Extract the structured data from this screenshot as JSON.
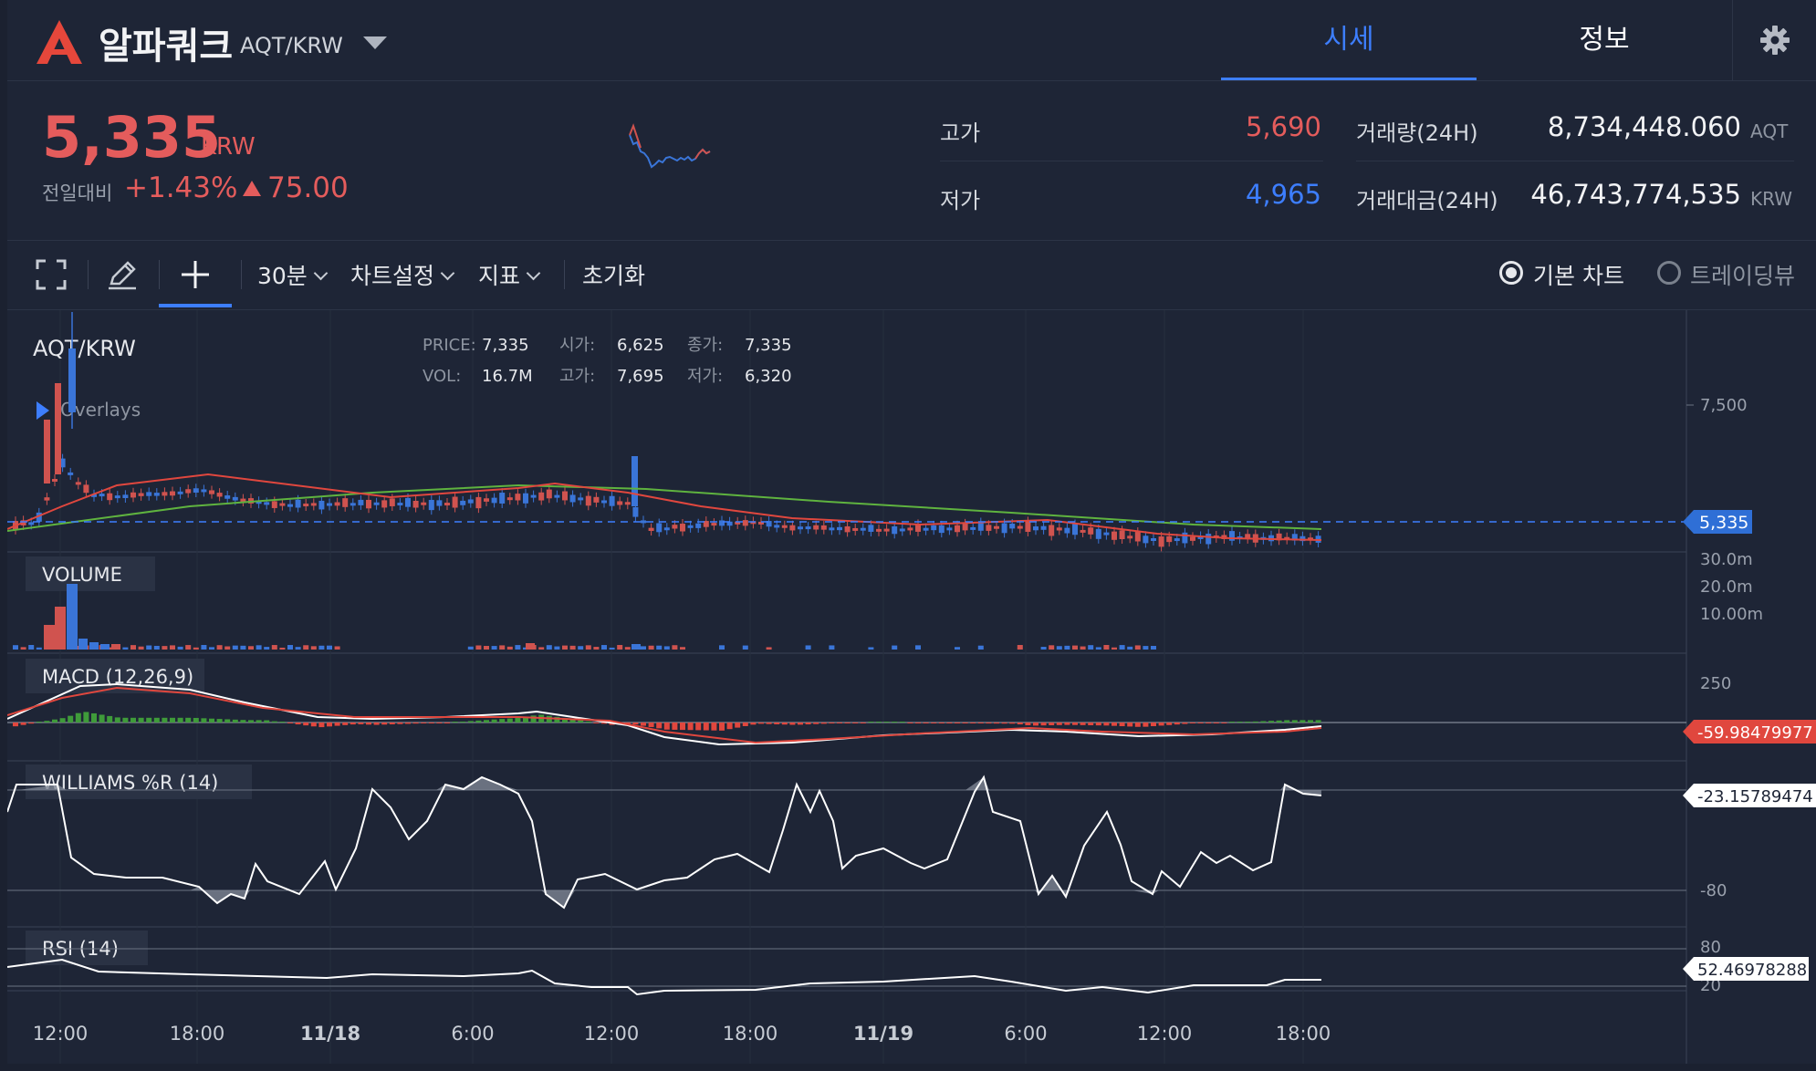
{
  "header": {
    "coin_name": "알파쿼크",
    "coin_pair": "AQT/KRW",
    "tabs": [
      {
        "label": "시세",
        "active": true
      },
      {
        "label": "정보",
        "active": false
      }
    ]
  },
  "ticker": {
    "price": "5,335",
    "unit": "KRW",
    "prev_label": "전일대비",
    "change_pct": "+1.43%",
    "change_amt": "75.00",
    "high_label": "고가",
    "high": "5,690",
    "low_label": "저가",
    "low": "4,965",
    "volume_label": "거래량(24H)",
    "volume": "8,734,448.060",
    "volume_unit": "AQT",
    "turnover_label": "거래대금(24H)",
    "turnover": "46,743,774,535",
    "turnover_unit": "KRW"
  },
  "toolbar": {
    "interval": "30분",
    "chart_settings": "차트설정",
    "indicators": "지표",
    "reset": "초기화",
    "view_basic": "기본 차트",
    "view_trading": "트레이딩뷰"
  },
  "chart": {
    "symbol": "AQT/KRW",
    "overlays_label": "Overlays",
    "info": {
      "price_label": "PRICE:",
      "price": "7,335",
      "open_label": "시가:",
      "open": "6,625",
      "close_label": "종가:",
      "close": "7,335",
      "vol_label": "VOL:",
      "vol": "16.7M",
      "high_label": "고가:",
      "high": "7,695",
      "low_label": "저가:",
      "low": "6,320"
    },
    "price_axis": [
      "7,500"
    ],
    "last_price_tag": "5,335",
    "volume_label": "VOLUME",
    "volume_axis": [
      "30.0m",
      "20.0m",
      "10.00m"
    ],
    "macd_label": "MACD (12,26,9)",
    "macd_axis": [
      "250"
    ],
    "macd_tag": "-59.98479977",
    "williams_label": "WILLIAMS %R (14)",
    "williams_axis": [
      "-80"
    ],
    "williams_tag": "-23.15789474",
    "rsi_label": "RSI (14)",
    "rsi_axis": [
      "80",
      "20"
    ],
    "rsi_tag": "52.46978288",
    "time_axis": [
      "12:00",
      "18:00",
      "11/18",
      "6:00",
      "12:00",
      "18:00",
      "11/19",
      "6:00",
      "12:00",
      "18:00"
    ],
    "colors": {
      "up": "#d0534f",
      "down": "#3a75d8",
      "ma_fast": "#e0473e",
      "ma_slow": "#5fb33f",
      "accent": "#3d7eff"
    }
  }
}
